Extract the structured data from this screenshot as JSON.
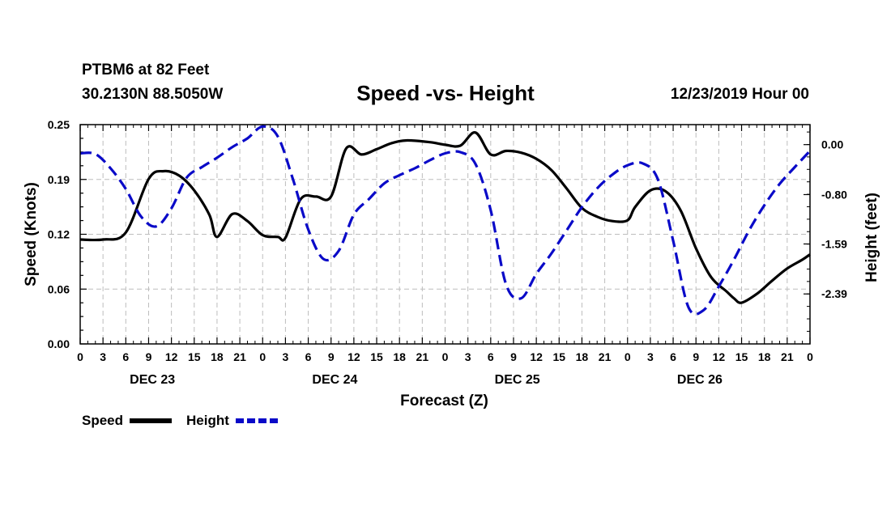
{
  "header": {
    "station": "PTBM6 at 82 Feet",
    "coords": "30.2130N 88.5050W",
    "title": "Speed -vs- Height",
    "datetime": "12/23/2019 Hour 00"
  },
  "chart_data": {
    "type": "line",
    "title": "Speed -vs- Height",
    "xlabel": "Forecast (Z)",
    "ylabel_left": "Speed (Knots)",
    "ylabel_right": "Height (feet)",
    "x_range_hours": [
      0,
      96
    ],
    "x_tick_labels": [
      "0",
      "3",
      "6",
      "9",
      "12",
      "15",
      "18",
      "21",
      "0",
      "3",
      "6",
      "9",
      "12",
      "15",
      "18",
      "21",
      "0",
      "3",
      "6",
      "9",
      "12",
      "15",
      "18",
      "21",
      "0",
      "3",
      "6",
      "9",
      "12",
      "15",
      "18",
      "21",
      "0"
    ],
    "day_labels": [
      "DEC 23",
      "DEC 24",
      "DEC 25",
      "DEC 26"
    ],
    "y_left": {
      "range": [
        0,
        0.25
      ],
      "ticks": [
        "0.00",
        "0.06",
        "0.12",
        "0.19",
        "0.25"
      ]
    },
    "y_right": {
      "range": [
        -3.19,
        0.32
      ],
      "ticks": [
        "-2.39",
        "-1.59",
        "-0.80",
        "0.00"
      ]
    },
    "grid": true,
    "series": [
      {
        "name": "Speed",
        "axis": "left",
        "color": "#000000",
        "style": "solid",
        "x": [
          0,
          3,
          6,
          9,
          11,
          13,
          15,
          17,
          18,
          20,
          22,
          24,
          26,
          27,
          29,
          31,
          33,
          35,
          37,
          39,
          41,
          43,
          46,
          48,
          50,
          52,
          54,
          56,
          58,
          60,
          62,
          64,
          66,
          68,
          70,
          72,
          73,
          75,
          77,
          79,
          81,
          83,
          85,
          86,
          87,
          89,
          91,
          93,
          95,
          96
        ],
        "y": [
          0.119,
          0.119,
          0.127,
          0.188,
          0.197,
          0.192,
          0.175,
          0.147,
          0.122,
          0.148,
          0.14,
          0.124,
          0.122,
          0.121,
          0.165,
          0.168,
          0.168,
          0.223,
          0.216,
          0.222,
          0.229,
          0.232,
          0.23,
          0.227,
          0.226,
          0.241,
          0.216,
          0.22,
          0.218,
          0.211,
          0.198,
          0.177,
          0.155,
          0.145,
          0.14,
          0.141,
          0.156,
          0.175,
          0.174,
          0.152,
          0.109,
          0.076,
          0.06,
          0.052,
          0.047,
          0.057,
          0.072,
          0.086,
          0.096,
          0.102
        ]
      },
      {
        "name": "Height",
        "axis": "right",
        "color": "#0a0ac8",
        "style": "dashed",
        "x": [
          0,
          2,
          4,
          6,
          8,
          10,
          12,
          14,
          16,
          18,
          20,
          22,
          24,
          26,
          28,
          30,
          32,
          34,
          36,
          38,
          40,
          42,
          44,
          46,
          48,
          50,
          52,
          54,
          56,
          58,
          60,
          62,
          64,
          66,
          68,
          70,
          72,
          74,
          76,
          78,
          80,
          82,
          84,
          86,
          88,
          90,
          92,
          94,
          96
        ],
        "y": [
          -0.14,
          -0.15,
          -0.38,
          -0.71,
          -1.15,
          -1.31,
          -1.02,
          -0.53,
          -0.36,
          -0.21,
          -0.04,
          0.1,
          0.29,
          0.13,
          -0.56,
          -1.36,
          -1.83,
          -1.7,
          -1.12,
          -0.87,
          -0.62,
          -0.49,
          -0.38,
          -0.25,
          -0.14,
          -0.12,
          -0.31,
          -1.05,
          -2.23,
          -2.46,
          -2.07,
          -1.74,
          -1.37,
          -1.0,
          -0.7,
          -0.48,
          -0.33,
          -0.3,
          -0.56,
          -1.54,
          -2.6,
          -2.65,
          -2.27,
          -1.84,
          -1.37,
          -0.97,
          -0.63,
          -0.36,
          -0.1
        ]
      }
    ]
  },
  "legend": {
    "speed_label": "Speed",
    "height_label": "Height"
  }
}
